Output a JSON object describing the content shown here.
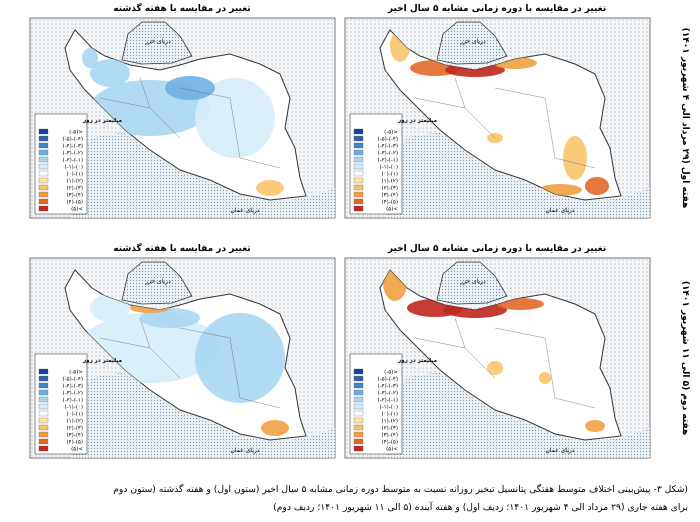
{
  "row_labels": [
    "هفته اول (۲۹ مرداد الی ۴ شهریور ۱۴۰۱)",
    "هفته دوم (۵ الی ۱۱ شهریور ۱۴۰۱)"
  ],
  "panels": [
    {
      "title": "تغییر در مقایسه با دوره زمانی مشابه ۵ سال اخیر"
    },
    {
      "title": "تغییر در مقایسه با هفته گذشته"
    },
    {
      "title": "تغییر در مقایسه با دوره زمانی مشابه ۵ سال اخیر"
    },
    {
      "title": "تغییر در مقایسه با هفته گذشته"
    }
  ],
  "map_labels": {
    "caspian": "دریای خزر",
    "oman": "دریای عمان"
  },
  "legend": {
    "title": "میلیمتر در روز",
    "entries": [
      {
        "label": "(-۵)>",
        "color": "#1c3f95"
      },
      {
        "label": "(-۵)-(-۴)",
        "color": "#2f5fb8"
      },
      {
        "label": "(-۴)-(-۳)",
        "color": "#3f86d0"
      },
      {
        "label": "(-۳)-(-۲)",
        "color": "#6fb0e4"
      },
      {
        "label": "(-۲)-(-۱)",
        "color": "#a9d6f2"
      },
      {
        "label": "(-۱)-(۰)",
        "color": "#d6ecfa"
      },
      {
        "label": "(۰)-(۱)",
        "color": "#ffffff"
      },
      {
        "label": "(۱)-(۲)",
        "color": "#fbe3b0"
      },
      {
        "label": "(۲)-(۳)",
        "color": "#f7c46a"
      },
      {
        "label": "(۳)-(۴)",
        "color": "#f0a040"
      },
      {
        "label": "(۴)-(۵)",
        "color": "#e2682a"
      },
      {
        "label": "(۵)<",
        "color": "#c0271e"
      }
    ]
  },
  "caption": [
    "(شکل ۳- پیش‌بینی اختلاف متوسط هفتگی پتانسیل تبخیر روزانه نسبت به متوسط دوره زمانی مشابه ۵ سال اخیر (ستون اول) و هفته گذشته (ستون دوم",
    "برای هفته جاری (۲۹ مرداد الی ۴ شهریور ۱۴۰۱؛ ردیف اول) و هفته آینده (۵ الی ۱۱ شهریور ۱۴۰۱؛ ردیف دوم)"
  ]
}
